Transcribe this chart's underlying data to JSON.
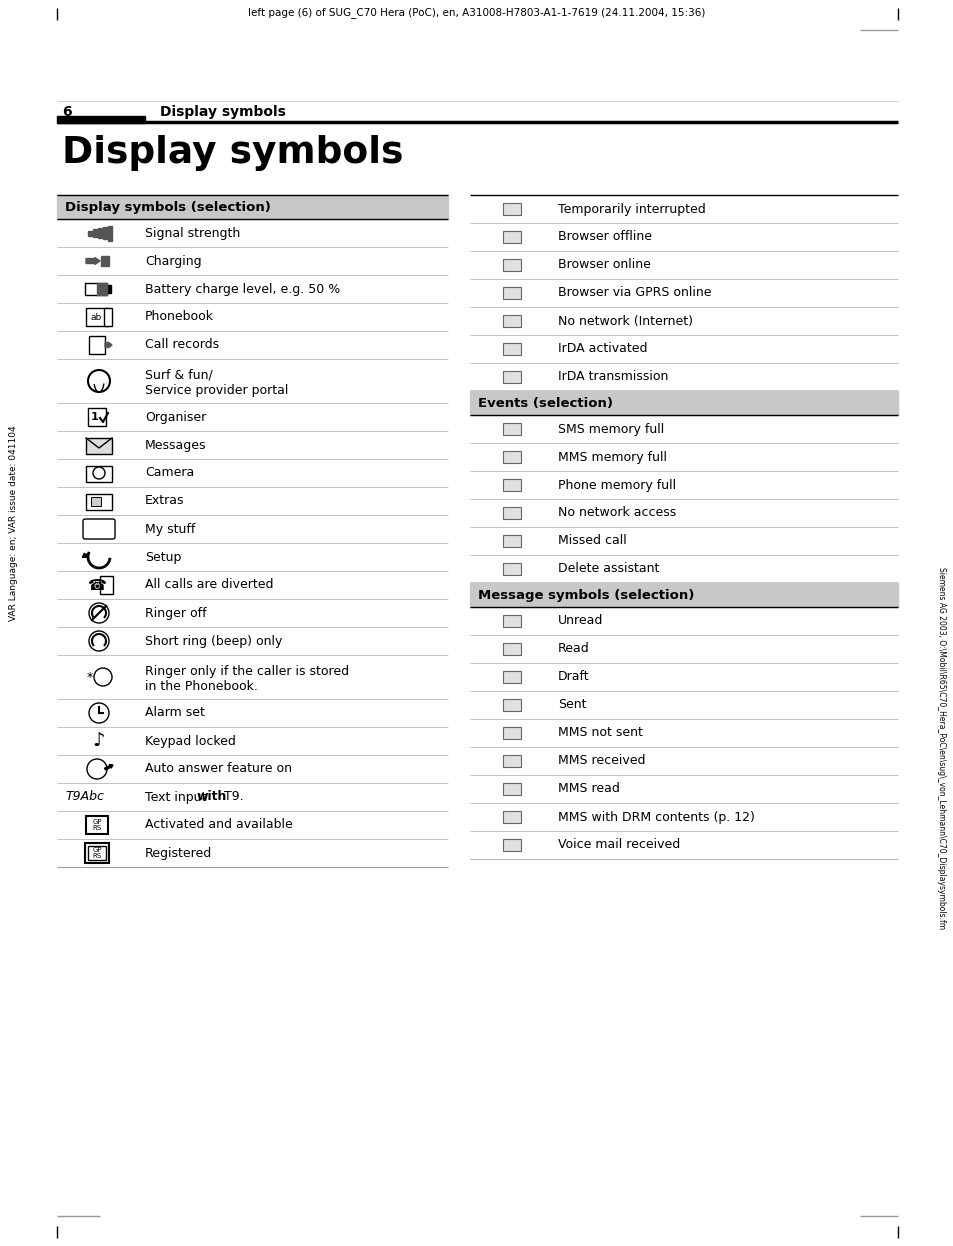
{
  "header_text": "left page (6) of SUG_C70 Hera (PoC), en, A31008-H7803-A1-1-7619 (24.11.2004, 15:36)",
  "page_number": "6",
  "page_header_title": "Display symbols",
  "main_title": "Display symbols",
  "left_vertical_text": "VAR Language: en; VAR issue date: 041104",
  "right_vertical_text": "Siemens AG 2003, O:\\Mobil\\R65\\C70_Hera_PoC\\en\\sug\\_von_Lehmann\\C70_Displaysymbols.fm",
  "bg_color": "#ffffff",
  "section_header_bg": "#c8c8c8",
  "left_col_section": "Display symbols (selection)",
  "left_items": [
    {
      "text": "Signal strength",
      "tall": false
    },
    {
      "text": "Charging",
      "tall": false
    },
    {
      "text": "Battery charge level, e.g. 50 %",
      "tall": false
    },
    {
      "text": "Phonebook",
      "tall": false
    },
    {
      "text": "Call records",
      "tall": false
    },
    {
      "text": "Surf & fun/\nService provider portal",
      "tall": true
    },
    {
      "text": "Organiser",
      "tall": false
    },
    {
      "text": "Messages",
      "tall": false
    },
    {
      "text": "Camera",
      "tall": false
    },
    {
      "text": "Extras",
      "tall": false
    },
    {
      "text": "My stuff",
      "tall": false
    },
    {
      "text": "Setup",
      "tall": false
    },
    {
      "text": "All calls are diverted",
      "tall": false
    },
    {
      "text": "Ringer off",
      "tall": false
    },
    {
      "text": "Short ring (beep) only",
      "tall": false
    },
    {
      "text": "Ringer only if the caller is stored\nin the Phonebook.",
      "tall": true
    },
    {
      "text": "Alarm set",
      "tall": false
    },
    {
      "text": "Keypad locked",
      "tall": false
    },
    {
      "text": "Auto answer feature on",
      "tall": false
    },
    {
      "text": "Text input |with| T9.",
      "tall": false,
      "t9": true
    },
    {
      "text": "Activated and available",
      "tall": false
    },
    {
      "text": "Registered",
      "tall": false
    }
  ],
  "right_section1_title": "",
  "right_items_top": [
    {
      "text": "Temporarily interrupted"
    },
    {
      "text": "Browser offline"
    },
    {
      "text": "Browser online"
    },
    {
      "text": "Browser via GPRS online"
    },
    {
      "text": "No network (Internet)"
    },
    {
      "text": "IrDA activated"
    },
    {
      "text": "IrDA transmission"
    }
  ],
  "right_section2": "Events (selection)",
  "right_items_mid": [
    {
      "text": "SMS memory full"
    },
    {
      "text": "MMS memory full"
    },
    {
      "text": "Phone memory full"
    },
    {
      "text": "No network access"
    },
    {
      "text": "Missed call"
    },
    {
      "text": "Delete assistant"
    }
  ],
  "right_section3": "Message symbols (selection)",
  "right_items_bot": [
    {
      "text": "Unread"
    },
    {
      "text": "Read"
    },
    {
      "text": "Draft"
    },
    {
      "text": "Sent"
    },
    {
      "text": "MMS not sent"
    },
    {
      "text": "MMS received"
    },
    {
      "text": "MMS read"
    },
    {
      "text": "MMS with DRM contents (p. 12)"
    },
    {
      "text": "Voice mail received"
    }
  ]
}
